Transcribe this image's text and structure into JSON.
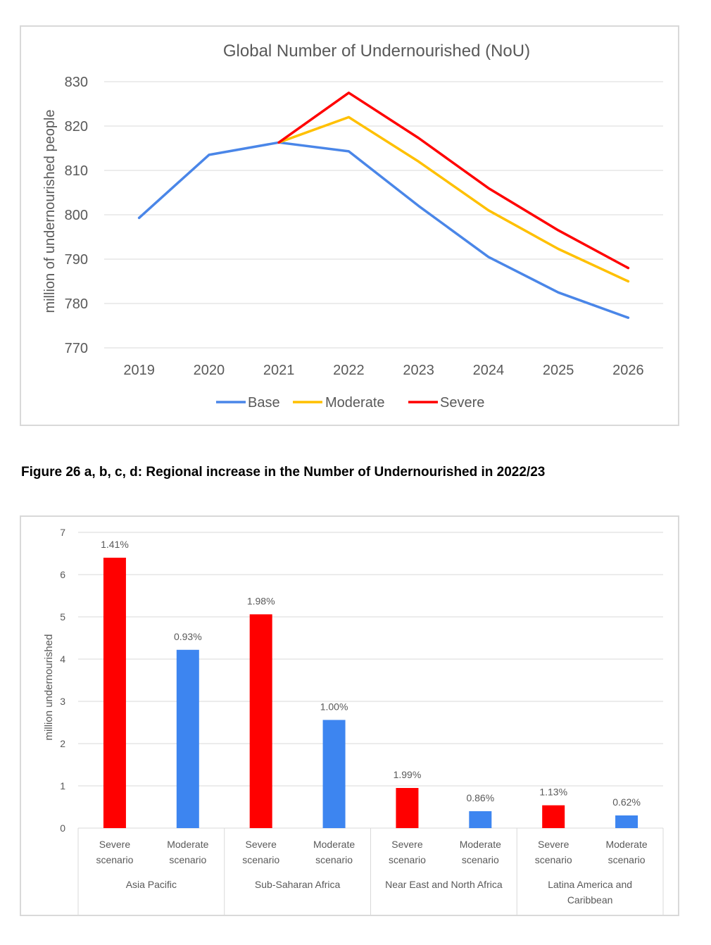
{
  "caption": "Figure 26 a, b, c, d:  Regional increase in the Number of Undernourished in 2022/23",
  "colors": {
    "base": "#4a86e8",
    "moderate": "#ffc000",
    "severe": "#ff0000",
    "blue_bar": "#3d85f0",
    "grid": "#d9d9d9",
    "text": "#595959"
  },
  "chart_data": [
    {
      "type": "line",
      "title": "Global Number of Undernourished (NoU)",
      "xlabel": "",
      "ylabel": "million of undernourished people",
      "x": [
        "2019",
        "2020",
        "2021",
        "2022",
        "2023",
        "2024",
        "2025",
        "2026"
      ],
      "ylim": [
        770,
        830
      ],
      "yticks": [
        "770",
        "780",
        "790",
        "800",
        "810",
        "820",
        "830"
      ],
      "grid": true,
      "legend": "bottom",
      "series": [
        {
          "name": "Base",
          "color": "#4a86e8",
          "values": [
            799.3,
            813.5,
            816.3,
            814.3,
            802.0,
            790.5,
            782.5,
            776.8
          ]
        },
        {
          "name": "Moderate",
          "color": "#ffc000",
          "values": [
            null,
            null,
            816.3,
            822.0,
            812.0,
            801.0,
            792.3,
            785.0
          ]
        },
        {
          "name": "Severe",
          "color": "#ff0000",
          "values": [
            null,
            null,
            816.3,
            827.5,
            817.3,
            806.0,
            796.5,
            788.0
          ]
        }
      ]
    },
    {
      "type": "bar",
      "title": "",
      "xlabel": "",
      "ylabel": "million undernourished",
      "ylim": [
        0,
        7
      ],
      "yticks": [
        "0",
        "1",
        "2",
        "3",
        "4",
        "5",
        "6",
        "7"
      ],
      "grid": true,
      "groups": [
        "Asia Pacific",
        "Sub-Saharan Africa",
        "Near East and North Africa",
        "Latina America and Caribbean"
      ],
      "categories": [
        "Severe scenario",
        "Moderate scenario",
        "Severe scenario",
        "Moderate scenario",
        "Severe scenario",
        "Moderate scenario",
        "Severe scenario",
        "Moderate scenario"
      ],
      "values": [
        6.4,
        4.22,
        5.06,
        2.56,
        0.95,
        0.4,
        0.54,
        0.3
      ],
      "labels": [
        "1.41%",
        "0.93%",
        "1.98%",
        "1.00%",
        "1.99%",
        "0.86%",
        "1.13%",
        "0.62%"
      ],
      "bar_colors": [
        "#ff0000",
        "#3d85f0",
        "#ff0000",
        "#3d85f0",
        "#ff0000",
        "#3d85f0",
        "#ff0000",
        "#3d85f0"
      ]
    }
  ]
}
